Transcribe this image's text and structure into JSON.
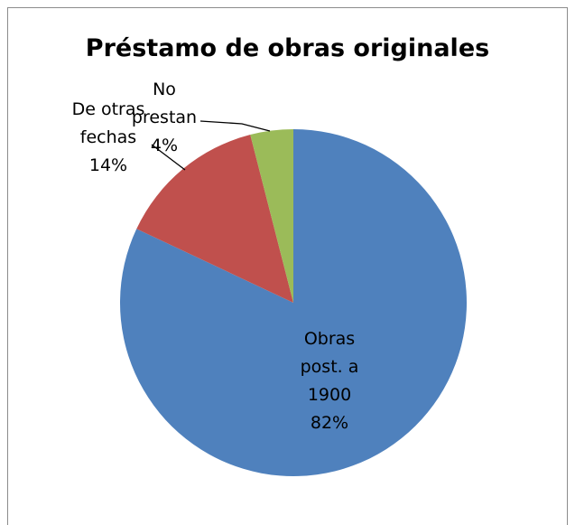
{
  "chart_data": {
    "type": "pie",
    "title": "Préstamo de obras originales",
    "categories": [
      "Obras post. a 1900",
      "De otras fechas",
      "No prestan"
    ],
    "values": [
      82,
      14,
      4
    ],
    "value_labels": [
      "82%",
      "14%",
      "4%"
    ],
    "colors": [
      "#4f81bd",
      "#c0504d",
      "#9bbb59"
    ]
  }
}
